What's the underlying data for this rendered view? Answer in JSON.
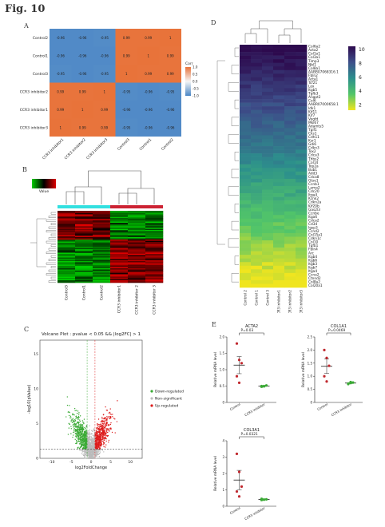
{
  "figure_title": "Fig. 10",
  "panels": {
    "A": {
      "letter": "A"
    },
    "B": {
      "letter": "B"
    },
    "C": {
      "letter": "C"
    },
    "D": {
      "letter": "D"
    },
    "E": {
      "letter": "E"
    }
  },
  "chart_data": [
    {
      "type": "heatmap",
      "panel": "A",
      "title": "",
      "rows": [
        "Control2",
        "Control1",
        "Control3",
        "CCR3 inhibitor2",
        "CCR3 inhibitor1",
        "CCR3 inhibitor3"
      ],
      "cols": [
        "CCR3 inhibitor1",
        "CCR3 inhibitor2",
        "CCR3 inhibitor3",
        "Control3",
        "Control1",
        "Control2"
      ],
      "values": [
        [
          -0.96,
          -0.96,
          -0.95,
          0.99,
          0.99,
          1
        ],
        [
          -0.96,
          -0.96,
          -0.96,
          0.99,
          1,
          0.99
        ],
        [
          -0.95,
          -0.96,
          -0.95,
          1,
          0.99,
          0.99
        ],
        [
          0.99,
          0.99,
          1,
          -0.95,
          -0.96,
          -0.95
        ],
        [
          0.99,
          1,
          0.99,
          -0.96,
          -0.96,
          -0.96
        ],
        [
          1,
          0.99,
          0.99,
          -0.95,
          -0.96,
          -0.96
        ]
      ],
      "legend_title": "Corr",
      "legend_ticks": [
        "1.0",
        "0.5",
        "0.0",
        "-0.5",
        "-1.0"
      ],
      "colors": {
        "low": "#4a86c5",
        "mid": "#f5f5f5",
        "high": "#e8733a"
      }
    },
    {
      "type": "heatmap",
      "panel": "B",
      "legend_title": "Value",
      "cols": [
        "Control3",
        "Control1",
        "Control2",
        "CCR3 inhibitor1",
        "CCR3 inhibitor 2",
        "CCR3 inhibitor 3"
      ],
      "colors": {
        "low": "#00cc00",
        "mid": "#000000",
        "high": "#dd0000",
        "group1": "#33e0e0",
        "group2": "#cc2233"
      }
    },
    {
      "type": "scatter",
      "panel": "C",
      "title": "Volcano Plot : pvalue < 0.05 && |log2FC| > 1",
      "xlabel": "log2FoldChange",
      "ylabel": "-log10(pValue)",
      "xticks": [
        -10,
        -5,
        0,
        5,
        10
      ],
      "yticks": [
        0,
        5,
        10,
        15
      ],
      "xlim": [
        -13,
        13
      ],
      "ylim": [
        0,
        17
      ],
      "legend": [
        "Down-regulated",
        "Non-significant",
        "Up-regulated"
      ],
      "legend_colors": [
        "#3aaa35",
        "#bbbbbb",
        "#dd1c1c"
      ],
      "legend_placement": "right"
    },
    {
      "type": "heatmap",
      "panel": "D",
      "genes": [
        "Col6a2",
        "Acta2",
        "Col1a1",
        "Col3a1",
        "Timp3",
        "Nbl1",
        "Col8a1",
        "AABR07068316.1",
        "Fbln2",
        "Acta1",
        "Tcf21",
        "Lox",
        "Itgb5",
        "Tgfb3",
        "Angpt2",
        "Col6",
        "AABR07000658.1",
        "Idk1",
        "Kif11",
        "Kif7",
        "Vegfd",
        "Mki67",
        "Adamts5",
        "Tgif1",
        "Cks1",
        "Cdh11",
        "Ksr1",
        "Gdi6",
        "Cdkn3",
        "Tox2",
        "Cdca3",
        "Thbs2",
        "Col14",
        "Top2a",
        "Bub1",
        "Add3",
        "Cdca8",
        "Gtse1",
        "Ccnb1",
        "Lama2",
        "Cdc20",
        "Itga4",
        "Kcnk2",
        "Cdkn2a",
        "Kif20b",
        "Gas2l3",
        "Ccnbe",
        "Itga6",
        "Cdca2",
        "Cd34",
        "Igsp3",
        "Ccnd2",
        "Col15a1",
        "Cdkn1c",
        "Col10",
        "Tgfb1",
        "Fbln4",
        "Arc",
        "Itgb4",
        "Itgb6",
        "Itgb3",
        "Itgb7",
        "Itga4",
        "Ccna2",
        "Ctnnd2",
        "Col8a2",
        "Col20a1"
      ],
      "cols": [
        "Control 2",
        "Control 1",
        "Control 3",
        "CCR3 inhibitor1",
        "CCR3 inhibitor2",
        "CCR3 inhibitor3"
      ],
      "colorbar_ticks": [
        10,
        8,
        6,
        4,
        2
      ],
      "colorbar_colors": [
        "#2d0a4e",
        "#3d4f8a",
        "#2c8f8c",
        "#52c569",
        "#f0e51f"
      ]
    },
    {
      "type": "scatter",
      "panel": "E",
      "title": "ACTA2",
      "ylabel": "Relative mRNA level",
      "categories": [
        "Control",
        "CCR3 inhibitor"
      ],
      "pvalue": "P=0.03",
      "yticks": [
        "0",
        "0.5",
        "1.0",
        "1.5",
        "2.0"
      ],
      "ylim": [
        0,
        2
      ],
      "series": [
        {
          "values": [
            1.8,
            1.3,
            1.2,
            0.8,
            0.6
          ],
          "color": "#c0282e"
        },
        {
          "values": [
            0.48,
            0.5,
            0.52,
            0.5,
            0.49
          ],
          "color": "#3aaa35"
        }
      ]
    },
    {
      "type": "scatter",
      "panel": "E",
      "title": "COL1A1",
      "ylabel": "Relative mRNA level",
      "categories": [
        "Control",
        "CCR3 inhibitor"
      ],
      "pvalue": "P=0.0469",
      "yticks": [
        "0",
        "0.5",
        "1.0",
        "1.5",
        "2.0",
        "2.5"
      ],
      "ylim": [
        0,
        2.5
      ],
      "series": [
        {
          "values": [
            2.0,
            1.7,
            1.4,
            1.0,
            0.8
          ],
          "color": "#c0282e"
        },
        {
          "values": [
            0.72,
            0.78,
            0.76,
            0.7,
            0.74
          ],
          "color": "#3aaa35"
        }
      ]
    },
    {
      "type": "scatter",
      "panel": "E",
      "title": "COL3A1",
      "ylabel": "Relative mRNA level",
      "categories": [
        "Control",
        "CCR3 inhibitor"
      ],
      "pvalue": "P=0.0321",
      "yticks": [
        "0",
        "1",
        "2",
        "3",
        "4"
      ],
      "ylim": [
        0,
        4
      ],
      "series": [
        {
          "values": [
            3.2,
            2.1,
            1.2,
            0.9,
            0.6
          ],
          "color": "#c0282e"
        },
        {
          "values": [
            0.45,
            0.4,
            0.42,
            0.38,
            0.41
          ],
          "color": "#3aaa35"
        }
      ]
    }
  ]
}
